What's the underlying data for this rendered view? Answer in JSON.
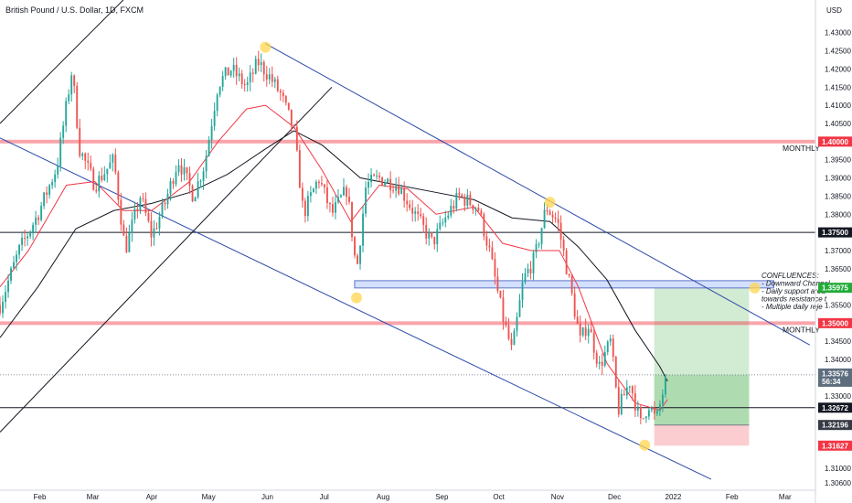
{
  "chart_data": {
    "type": "candlestick",
    "title": "British Pound / U.S. Dollar, 1D, FXCM",
    "currency": "USD",
    "y_range": [
      1.304,
      1.439
    ],
    "y_ticks": [
      "1.43000",
      "1.42500",
      "1.42000",
      "1.41500",
      "1.41000",
      "1.40500",
      "1.39500",
      "1.39000",
      "1.38500",
      "1.38000",
      "1.37000",
      "1.36500",
      "1.35500",
      "1.34500",
      "1.34000",
      "1.33000",
      "1.31000",
      "1.30600"
    ],
    "x_ticks": [
      "Feb",
      "Mar",
      "Apr",
      "May",
      "Jun",
      "Jul",
      "Aug",
      "Sep",
      "Oct",
      "Nov",
      "Dec",
      "2022",
      "Feb",
      "Mar"
    ],
    "x_tick_days": [
      31,
      59,
      90,
      120,
      151,
      181,
      212,
      243,
      273,
      304,
      334,
      365,
      396,
      424
    ],
    "x_day_range": [
      10,
      440
    ],
    "price_levels": [
      {
        "value": 1.4,
        "label": "1.40000",
        "type": "monthly",
        "color": "#f23645"
      },
      {
        "value": 1.375,
        "label": "1.37500",
        "type": "black",
        "color": "#131722"
      },
      {
        "value": 1.35975,
        "label": "1.35975",
        "type": "target",
        "color": "#22ab39"
      },
      {
        "value": 1.35,
        "label": "1.35000",
        "type": "monthly",
        "color": "#f23645"
      },
      {
        "value": 1.33576,
        "label": "1.33576",
        "type": "current",
        "color": "#5d6d7e",
        "sub": "56:34"
      },
      {
        "value": 1.32672,
        "label": "1.32672",
        "type": "black",
        "color": "#131722"
      },
      {
        "value": 1.32196,
        "label": "1.32196",
        "type": "entry",
        "color": "#363a45"
      },
      {
        "value": 1.31627,
        "label": "1.31627",
        "type": "stop",
        "color": "#f23645"
      }
    ],
    "annotations": {
      "monthly_upper": "MONTHLY",
      "monthly_lower": "MONTHLY",
      "confluences": [
        "CONFLUENCES:",
        "- Downward Channel",
        "- Daily support area",
        "towards resistance t",
        "- Multiple daily reje"
      ]
    },
    "support_zone": {
      "start_day": 197,
      "end_day": 418,
      "top": 1.3617,
      "bottom": 1.3597
    },
    "trade": {
      "start_day": 355,
      "end_day": 405,
      "target": 1.35975,
      "entry": 1.33576,
      "base": 1.32196,
      "stop": 1.31627
    },
    "channel": {
      "upper": [
        [
          150,
          1.427
        ],
        [
          437,
          1.344
        ]
      ],
      "lower": [
        [
          10,
          1.401
        ],
        [
          385,
          1.307
        ]
      ]
    },
    "rising_line": {
      "points": [
        [
          10,
          1.32
        ],
        [
          185,
          1.415
        ]
      ]
    },
    "early_line": {
      "points": [
        [
          10,
          1.405
        ],
        [
          75,
          1.439
        ]
      ]
    },
    "touch_points": [
      [
        150,
        1.426
      ],
      [
        198,
        1.357
      ],
      [
        300,
        1.3833
      ],
      [
        350,
        1.3164
      ],
      [
        408,
        1.3597
      ]
    ],
    "ma_slow": [
      [
        10,
        1.346
      ],
      [
        30,
        1.36
      ],
      [
        50,
        1.376
      ],
      [
        70,
        1.381
      ],
      [
        90,
        1.383
      ],
      [
        110,
        1.386
      ],
      [
        130,
        1.391
      ],
      [
        150,
        1.398
      ],
      [
        165,
        1.403
      ],
      [
        180,
        1.399
      ],
      [
        200,
        1.39
      ],
      [
        220,
        1.388
      ],
      [
        240,
        1.386
      ],
      [
        260,
        1.384
      ],
      [
        280,
        1.379
      ],
      [
        300,
        1.378
      ],
      [
        315,
        1.371
      ],
      [
        330,
        1.362
      ],
      [
        345,
        1.348
      ],
      [
        358,
        1.338
      ],
      [
        362,
        1.334
      ]
    ],
    "ma_fast": [
      [
        10,
        1.36
      ],
      [
        25,
        1.37
      ],
      [
        45,
        1.388
      ],
      [
        60,
        1.389
      ],
      [
        75,
        1.381
      ],
      [
        90,
        1.381
      ],
      [
        110,
        1.389
      ],
      [
        125,
        1.4
      ],
      [
        140,
        1.409
      ],
      [
        150,
        1.41
      ],
      [
        165,
        1.404
      ],
      [
        180,
        1.392
      ],
      [
        195,
        1.378
      ],
      [
        210,
        1.388
      ],
      [
        225,
        1.387
      ],
      [
        240,
        1.38
      ],
      [
        260,
        1.382
      ],
      [
        275,
        1.372
      ],
      [
        290,
        1.37
      ],
      [
        305,
        1.37
      ],
      [
        315,
        1.36
      ],
      [
        330,
        1.339
      ],
      [
        345,
        1.328
      ],
      [
        358,
        1.326
      ],
      [
        362,
        1.329
      ]
    ],
    "price_path": [
      [
        10,
        1.355
      ],
      [
        20,
        1.37
      ],
      [
        30,
        1.38
      ],
      [
        40,
        1.393
      ],
      [
        48,
        1.42
      ],
      [
        52,
        1.398
      ],
      [
        60,
        1.388
      ],
      [
        70,
        1.395
      ],
      [
        76,
        1.37
      ],
      [
        84,
        1.385
      ],
      [
        90,
        1.374
      ],
      [
        97,
        1.383
      ],
      [
        104,
        1.395
      ],
      [
        112,
        1.385
      ],
      [
        118,
        1.394
      ],
      [
        125,
        1.416
      ],
      [
        132,
        1.42
      ],
      [
        140,
        1.415
      ],
      [
        146,
        1.422
      ],
      [
        152,
        1.418
      ],
      [
        158,
        1.413
      ],
      [
        165,
        1.403
      ],
      [
        170,
        1.38
      ],
      [
        178,
        1.39
      ],
      [
        185,
        1.38
      ],
      [
        193,
        1.387
      ],
      [
        198,
        1.364
      ],
      [
        203,
        1.388
      ],
      [
        210,
        1.39
      ],
      [
        220,
        1.388
      ],
      [
        230,
        1.379
      ],
      [
        238,
        1.372
      ],
      [
        245,
        1.379
      ],
      [
        252,
        1.385
      ],
      [
        262,
        1.382
      ],
      [
        268,
        1.37
      ],
      [
        275,
        1.352
      ],
      [
        280,
        1.342
      ],
      [
        286,
        1.362
      ],
      [
        292,
        1.368
      ],
      [
        298,
        1.382
      ],
      [
        304,
        1.378
      ],
      [
        310,
        1.362
      ],
      [
        316,
        1.345
      ],
      [
        320,
        1.35
      ],
      [
        326,
        1.338
      ],
      [
        332,
        1.345
      ],
      [
        336,
        1.326
      ],
      [
        342,
        1.334
      ],
      [
        348,
        1.322
      ],
      [
        352,
        1.328
      ],
      [
        356,
        1.323
      ],
      [
        360,
        1.332
      ],
      [
        362,
        1.335
      ]
    ]
  }
}
